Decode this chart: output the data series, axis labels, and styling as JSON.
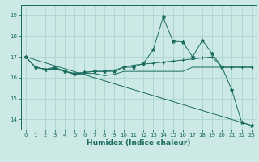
{
  "title": "",
  "xlabel": "Humidex (Indice chaleur)",
  "background_color": "#cce9e6",
  "grid_color": "#aad4d0",
  "line_color": "#1a6b60",
  "xlim": [
    -0.5,
    23.5
  ],
  "ylim": [
    13.5,
    19.5
  ],
  "yticks": [
    14,
    15,
    16,
    17,
    18,
    19
  ],
  "xticks": [
    0,
    1,
    2,
    3,
    4,
    5,
    6,
    7,
    8,
    9,
    10,
    11,
    12,
    13,
    14,
    15,
    16,
    17,
    18,
    19,
    20,
    21,
    22,
    23
  ],
  "lines": [
    {
      "x": [
        0,
        1,
        2,
        3,
        4,
        5,
        6,
        7,
        8,
        9,
        10,
        11,
        12,
        13,
        14,
        15,
        16,
        17,
        18,
        19,
        20,
        21,
        22,
        23
      ],
      "y": [
        17.0,
        16.5,
        16.4,
        16.5,
        16.3,
        16.2,
        16.25,
        16.3,
        16.3,
        16.3,
        16.5,
        16.5,
        16.7,
        17.35,
        18.9,
        17.75,
        17.72,
        17.0,
        17.8,
        17.15,
        16.5,
        15.4,
        13.85,
        13.7
      ],
      "marker": "*",
      "markersize": 3.5
    },
    {
      "x": [
        0,
        1,
        2,
        3,
        4,
        5,
        6,
        7,
        8,
        9,
        10,
        11,
        12,
        13,
        14,
        15,
        16,
        17,
        18,
        19,
        20,
        21,
        22,
        23
      ],
      "y": [
        17.0,
        16.5,
        16.4,
        16.45,
        16.3,
        16.2,
        16.25,
        16.3,
        16.3,
        16.35,
        16.5,
        16.6,
        16.65,
        16.7,
        16.75,
        16.8,
        16.85,
        16.9,
        16.95,
        17.0,
        16.5,
        16.5,
        16.5,
        16.5
      ],
      "marker": "+",
      "markersize": 3.5
    },
    {
      "x": [
        0,
        1,
        2,
        3,
        4,
        5,
        6,
        7,
        8,
        9,
        10,
        11,
        12,
        13,
        14,
        15,
        16,
        17,
        18,
        19,
        20,
        21,
        22,
        23
      ],
      "y": [
        17.0,
        16.5,
        16.4,
        16.4,
        16.3,
        16.15,
        16.2,
        16.2,
        16.1,
        16.15,
        16.3,
        16.3,
        16.3,
        16.3,
        16.3,
        16.3,
        16.3,
        16.5,
        16.5,
        16.5,
        16.5,
        16.5,
        16.5,
        16.5
      ],
      "marker": "",
      "markersize": 0
    },
    {
      "x": [
        0,
        23
      ],
      "y": [
        17.0,
        13.7
      ],
      "marker": "",
      "markersize": 0
    }
  ]
}
